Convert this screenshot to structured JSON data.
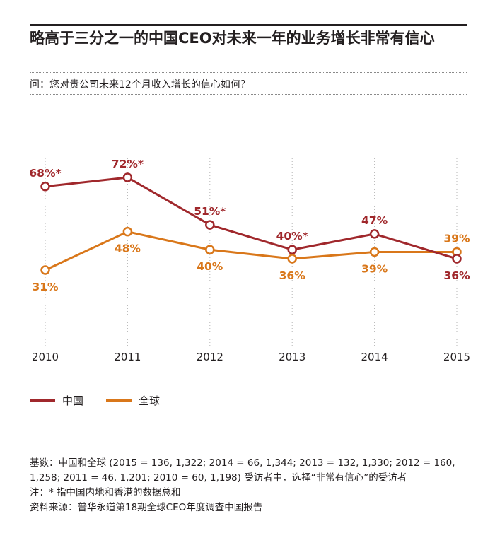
{
  "header": {
    "title": "略高于三分之一的中国CEO对未来一年的业务增长非常有信心",
    "question": "问：您对贵公司未来12个月收入增长的信心如何？"
  },
  "chart_data": {
    "type": "line",
    "x": [
      "2010",
      "2011",
      "2012",
      "2013",
      "2014",
      "2015"
    ],
    "ylim": [
      20,
      80
    ],
    "grid": "vertical-dotted",
    "legend_position": "bottom-left",
    "series": [
      {
        "name": "中国",
        "color": "#a0282c",
        "values": [
          68,
          72,
          51,
          40,
          47,
          36
        ],
        "labels": [
          "68%*",
          "72%*",
          "51%*",
          "40%*",
          "47%",
          "36%"
        ],
        "label_side": [
          "above",
          "above",
          "above",
          "above",
          "above",
          "below"
        ]
      },
      {
        "name": "全球",
        "color": "#d9771a",
        "values": [
          31,
          48,
          40,
          36,
          39,
          39
        ],
        "labels": [
          "31%",
          "48%",
          "40%",
          "36%",
          "39%",
          "39%"
        ],
        "label_side": [
          "below",
          "below",
          "below",
          "below",
          "below",
          "above"
        ]
      }
    ]
  },
  "notes": {
    "base": "基数：中国和全球 (2015 = 136, 1,322; 2014 = 66, 1,344; 2013 = 132, 1,330; 2012 = 160, 1,258; 2011 = 46, 1,201; 2010 = 60, 1,198) 受访者中，选择“非常有信心”的受访者",
    "note": "注：* 指中国内地和香港的数据总和",
    "source": "资料来源：普华永道第18期全球CEO年度调查中国报告"
  }
}
